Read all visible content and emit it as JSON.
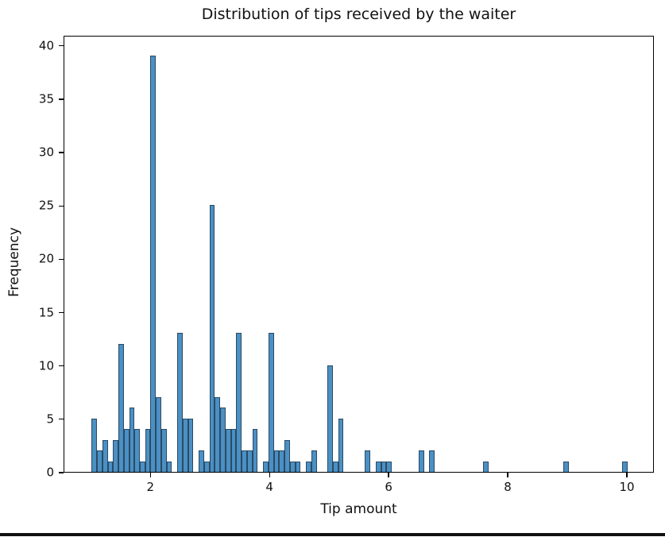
{
  "figure": {
    "title": "Distribution of tips received by the waiter",
    "xlabel": "Tip amount",
    "ylabel": "Frequency"
  },
  "chart_data": {
    "type": "bar",
    "subtype": "histogram",
    "title": "Distribution of tips received by the waiter",
    "xlabel": "Tip amount",
    "ylabel": "Frequency",
    "legend": null,
    "grid": false,
    "bin_width": 0.09,
    "xlim": [
      0.543,
      10.453
    ],
    "ylim": [
      0,
      40.95
    ],
    "x_ticks": [
      2,
      4,
      6,
      8,
      10
    ],
    "y_ticks": [
      0,
      5,
      10,
      15,
      20,
      25,
      30,
      35,
      40
    ],
    "bars_format": "[bin_left_tip_amount, frequency]",
    "bars": [
      [
        1.0,
        5
      ],
      [
        1.09,
        2
      ],
      [
        1.18,
        3
      ],
      [
        1.27,
        1
      ],
      [
        1.36,
        3
      ],
      [
        1.45,
        12
      ],
      [
        1.54,
        4
      ],
      [
        1.63,
        6
      ],
      [
        1.72,
        4
      ],
      [
        1.81,
        1
      ],
      [
        1.9,
        4
      ],
      [
        1.99,
        39
      ],
      [
        2.08,
        7
      ],
      [
        2.17,
        4
      ],
      [
        2.26,
        1
      ],
      [
        2.44,
        13
      ],
      [
        2.53,
        5
      ],
      [
        2.62,
        5
      ],
      [
        2.8,
        2
      ],
      [
        2.89,
        1
      ],
      [
        2.98,
        25
      ],
      [
        3.07,
        7
      ],
      [
        3.16,
        6
      ],
      [
        3.25,
        4
      ],
      [
        3.34,
        4
      ],
      [
        3.43,
        13
      ],
      [
        3.52,
        2
      ],
      [
        3.61,
        2
      ],
      [
        3.7,
        4
      ],
      [
        3.88,
        1
      ],
      [
        3.97,
        13
      ],
      [
        4.06,
        2
      ],
      [
        4.15,
        2
      ],
      [
        4.24,
        3
      ],
      [
        4.33,
        1
      ],
      [
        4.42,
        1
      ],
      [
        4.6,
        1
      ],
      [
        4.69,
        2
      ],
      [
        4.96,
        10
      ],
      [
        5.05,
        1
      ],
      [
        5.14,
        5
      ],
      [
        5.59,
        2
      ],
      [
        5.77,
        1
      ],
      [
        5.86,
        1
      ],
      [
        5.95,
        1
      ],
      [
        6.49,
        2
      ],
      [
        6.67,
        2
      ],
      [
        7.57,
        1
      ],
      [
        8.92,
        1
      ],
      [
        9.91,
        1
      ]
    ],
    "colors": {
      "bar_fill": "#4a90c4",
      "bar_edge": "#2c4a63",
      "axis": "#000000",
      "text": "#111111",
      "background": "#ffffff"
    }
  }
}
